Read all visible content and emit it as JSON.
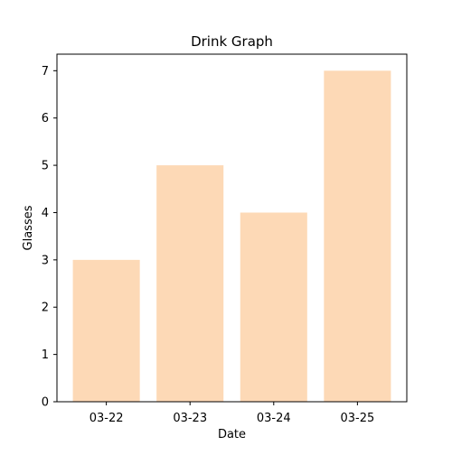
{
  "chart_data": {
    "type": "bar",
    "title": "Drink Graph",
    "xlabel": "Date",
    "ylabel": "Glasses",
    "categories": [
      "03-22",
      "03-23",
      "03-24",
      "03-25"
    ],
    "values": [
      3,
      5,
      4,
      7
    ],
    "ylim": [
      0,
      7.35
    ],
    "yticks": [
      "0",
      "1",
      "2",
      "3",
      "4",
      "5",
      "6",
      "7"
    ],
    "grid": false,
    "legend": "none",
    "colors": {
      "bar": "#FDD9B6",
      "axis": "#000000",
      "background": "#ffffff"
    }
  }
}
